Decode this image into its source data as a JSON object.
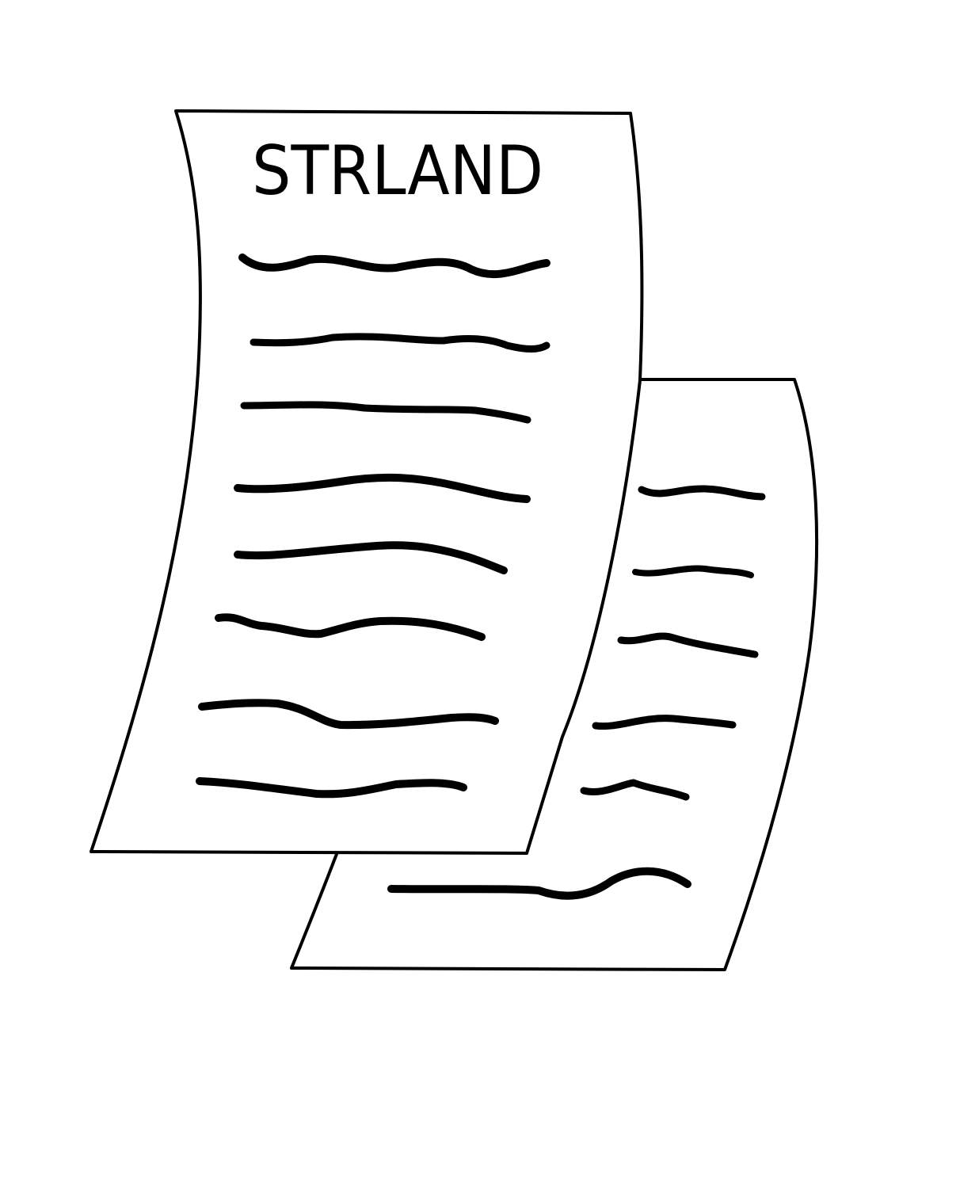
{
  "document_front": {
    "title": "STRLAND",
    "text_line_count": 8
  },
  "document_back": {
    "text_line_count": 6
  },
  "colors": {
    "background": "#ffffff",
    "ink": "#000000"
  }
}
